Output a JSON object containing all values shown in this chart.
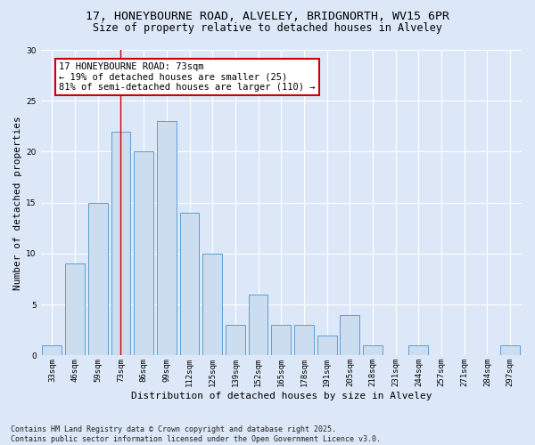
{
  "title_line1": "17, HONEYBOURNE ROAD, ALVELEY, BRIDGNORTH, WV15 6PR",
  "title_line2": "Size of property relative to detached houses in Alveley",
  "xlabel": "Distribution of detached houses by size in Alveley",
  "ylabel": "Number of detached properties",
  "categories": [
    "33sqm",
    "46sqm",
    "59sqm",
    "73sqm",
    "86sqm",
    "99sqm",
    "112sqm",
    "125sqm",
    "139sqm",
    "152sqm",
    "165sqm",
    "178sqm",
    "191sqm",
    "205sqm",
    "218sqm",
    "231sqm",
    "244sqm",
    "257sqm",
    "271sqm",
    "284sqm",
    "297sqm"
  ],
  "values": [
    1,
    9,
    15,
    22,
    20,
    23,
    14,
    10,
    3,
    6,
    3,
    3,
    2,
    4,
    1,
    0,
    1,
    0,
    0,
    0,
    1
  ],
  "bar_color": "#ccddf0",
  "bar_edge_color": "#5a9fd4",
  "redline_index": 3,
  "annotation_text": "17 HONEYBOURNE ROAD: 73sqm\n← 19% of detached houses are smaller (25)\n81% of semi-detached houses are larger (110) →",
  "annotation_box_color": "#ffffff",
  "annotation_box_edge": "#cc0000",
  "redline_color": "#cc0000",
  "ylim": [
    0,
    30
  ],
  "yticks": [
    0,
    5,
    10,
    15,
    20,
    25,
    30
  ],
  "background_color": "#dce8f8",
  "grid_color": "#ffffff",
  "footer_text": "Contains HM Land Registry data © Crown copyright and database right 2025.\nContains public sector information licensed under the Open Government Licence v3.0.",
  "title_fontsize": 9.5,
  "subtitle_fontsize": 8.5,
  "axis_label_fontsize": 8,
  "tick_fontsize": 6.5,
  "annotation_fontsize": 7.5,
  "footer_fontsize": 6
}
